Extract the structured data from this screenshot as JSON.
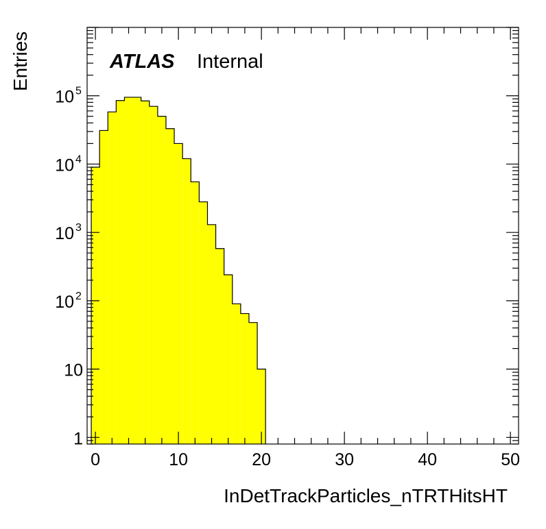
{
  "chart_data": {
    "type": "bar",
    "style": "step-histogram",
    "fill_color": "#ffff00",
    "line_color": "#000000",
    "xlabel": "InDetTrackParticles_nTRTHitsHT",
    "ylabel": "Entries",
    "xlim": [
      0,
      50
    ],
    "ylim": [
      0.8,
      1000000
    ],
    "yscale": "log",
    "bin_width": 1,
    "x_start": -0.5,
    "values": [
      9000,
      31000,
      58000,
      85000,
      95000,
      95000,
      84000,
      70000,
      50000,
      33000,
      20000,
      12000,
      5500,
      2800,
      1300,
      580,
      240,
      90,
      65,
      48,
      10
    ],
    "x_ticks": [
      "0",
      "10",
      "20",
      "30",
      "40",
      "50"
    ],
    "y_ticks": [
      {
        "base": "1",
        "exp": ""
      },
      {
        "base": "10",
        "exp": ""
      },
      {
        "base": "10",
        "exp": "2"
      },
      {
        "base": "10",
        "exp": "3"
      },
      {
        "base": "10",
        "exp": "4"
      },
      {
        "base": "10",
        "exp": "5"
      }
    ],
    "annotation": {
      "bold": "ATLAS",
      "normal": "Internal"
    }
  }
}
